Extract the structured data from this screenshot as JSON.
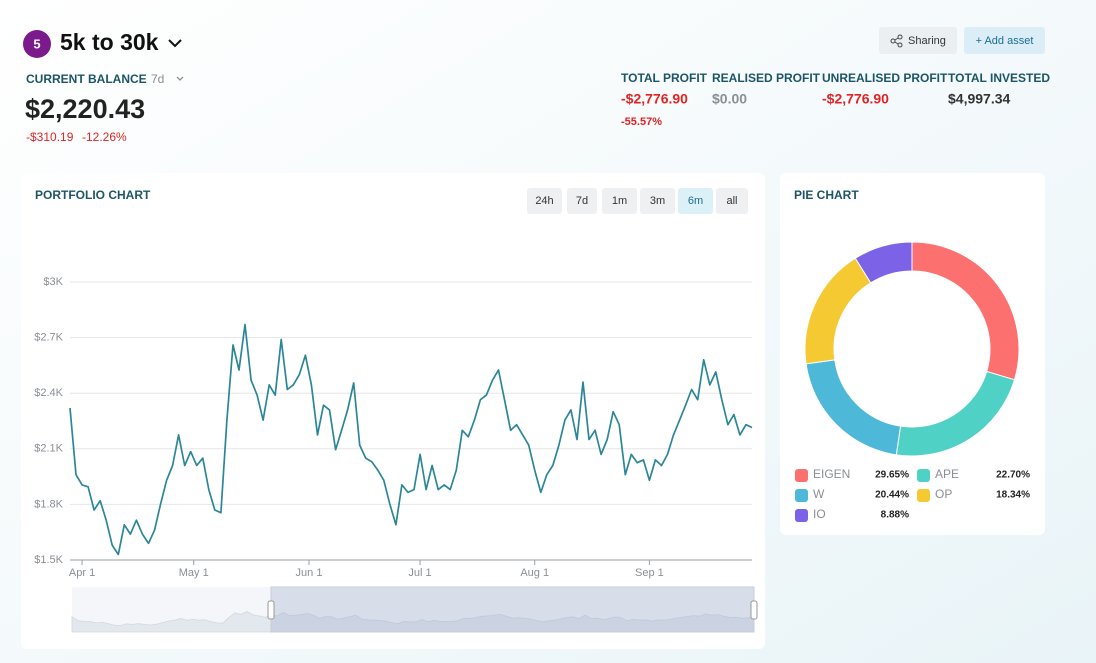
{
  "header": {
    "badge": "5",
    "title": "5k to 30k",
    "buttons": [
      "Sharing",
      "+ Add asset"
    ]
  },
  "balance": {
    "label": "CURRENT BALANCE",
    "period": "7d",
    "value": "$2,220.43",
    "change": "-$310.19",
    "change_pct": "-12.26%"
  },
  "stats": [
    {
      "label": "TOTAL PROFIT",
      "value": "-$2,776.90",
      "sub": "-55.57%",
      "color": "#e02424"
    },
    {
      "label": "REALISED PROFIT",
      "value": "$0.00",
      "color": "#8a8f94"
    },
    {
      "label": "UNREALISED PROFIT",
      "value": "-$2,776.90",
      "color": "#e02424"
    },
    {
      "label": "TOTAL INVESTED",
      "value": "$4,997.34",
      "color": "#333333"
    }
  ],
  "range_buttons": {
    "labels": [
      "24h",
      "7d",
      "1m",
      "3m",
      "6m",
      "all"
    ],
    "active": "6m"
  },
  "chart_data": [
    {
      "type": "line",
      "title": "PORTFOLIO CHART",
      "color": "#2b8797",
      "grid": true,
      "values": [
        2320,
        1960,
        1905,
        1895,
        1770,
        1820,
        1715,
        1580,
        1530,
        1690,
        1640,
        1715,
        1640,
        1590,
        1660,
        1800,
        1930,
        2010,
        2175,
        2010,
        2085,
        2010,
        2050,
        1880,
        1770,
        1755,
        2255,
        2660,
        2525,
        2770,
        2470,
        2390,
        2255,
        2445,
        2390,
        2690,
        2420,
        2445,
        2500,
        2605,
        2445,
        2175,
        2335,
        2310,
        2095,
        2200,
        2310,
        2455,
        2120,
        2050,
        2030,
        1985,
        1930,
        1800,
        1690,
        1905,
        1865,
        1880,
        2070,
        1880,
        2010,
        1880,
        1905,
        1880,
        1985,
        2200,
        2165,
        2255,
        2365,
        2390,
        2470,
        2525,
        2365,
        2200,
        2230,
        2175,
        2120,
        1985,
        1865,
        1960,
        2010,
        2120,
        2255,
        2310,
        2150,
        2460,
        2150,
        2200,
        2070,
        2150,
        2300,
        2230,
        1960,
        2070,
        2025,
        2040,
        1930,
        2040,
        2010,
        2070,
        2175,
        2255,
        2335,
        2420,
        2365,
        2580,
        2445,
        2515,
        2365,
        2230,
        2285,
        2175,
        2230,
        2215
      ],
      "xlim": [
        0,
        113
      ],
      "xticks": [
        {
          "value": 2,
          "label": "Apr 1"
        },
        {
          "value": 20.5,
          "label": "May 1"
        },
        {
          "value": 39.6,
          "label": "Jun 1"
        },
        {
          "value": 58,
          "label": "Jul 1"
        },
        {
          "value": 77,
          "label": "Aug 1"
        },
        {
          "value": 96,
          "label": "Sep 1"
        }
      ],
      "ylim": [
        1500,
        3000
      ],
      "yticks": [
        {
          "value": 1500,
          "label": "$1.5K"
        },
        {
          "value": 1800,
          "label": "$1.8K"
        },
        {
          "value": 2100,
          "label": "$2.1K"
        },
        {
          "value": 2400,
          "label": "$2.4K"
        },
        {
          "value": 2700,
          "label": "$2.7K"
        },
        {
          "value": 3000,
          "label": "$3K"
        }
      ]
    },
    {
      "type": "pie",
      "title": "PIE CHART",
      "donut": true,
      "categories": [
        "EIGEN",
        "APE",
        "W",
        "OP",
        "IO"
      ],
      "values": [
        29.65,
        22.7,
        20.44,
        18.34,
        8.88
      ],
      "value_labels": [
        "29.65%",
        "22.70%",
        "20.44%",
        "18.34%",
        "8.88%"
      ],
      "colors": [
        "#fd7070",
        "#4fd1c5",
        "#4db8d8",
        "#f5c932",
        "#7b62e6"
      ]
    }
  ]
}
